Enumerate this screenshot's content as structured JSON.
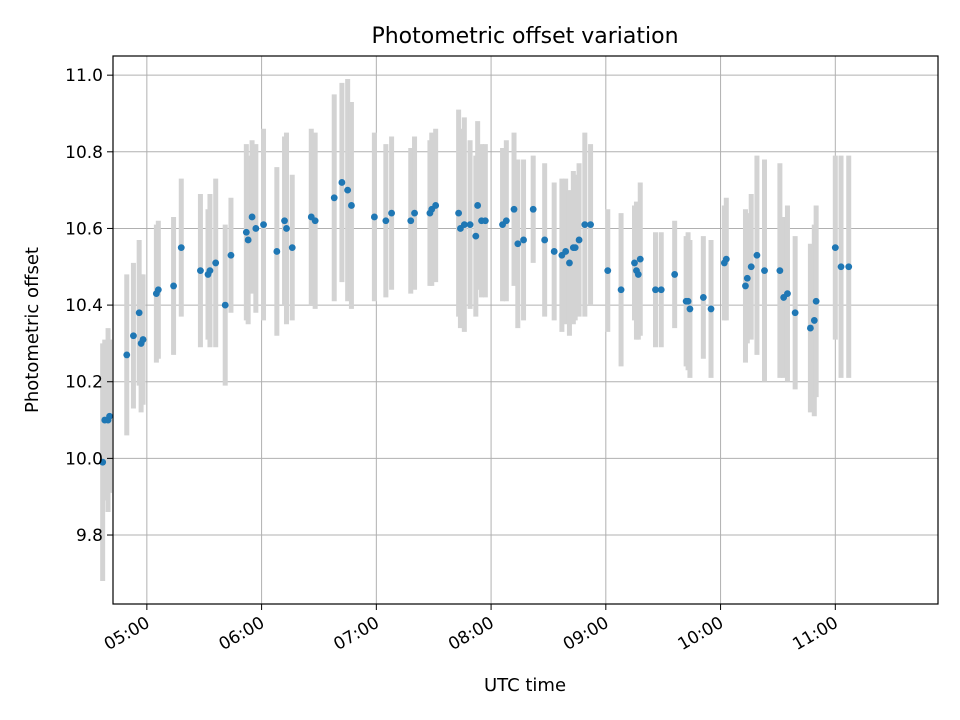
{
  "chart_data": {
    "type": "scatter",
    "title": "Photometric offset variation",
    "xlabel": "UTC time",
    "ylabel": "Photometric offset",
    "x_tick_labels": [
      "05:00",
      "06:00",
      "07:00",
      "08:00",
      "09:00",
      "10:00",
      "11:00"
    ],
    "x_tick_hours": [
      5,
      6,
      7,
      8,
      9,
      10,
      11
    ],
    "y_tick_labels": [
      "9.8",
      "10.0",
      "10.2",
      "10.4",
      "10.6",
      "10.8",
      "11.0"
    ],
    "y_tick_values": [
      9.8,
      10.0,
      10.2,
      10.4,
      10.6,
      10.8,
      11.0
    ],
    "xlim_hours": [
      4.705,
      11.895
    ],
    "ylim": [
      9.62,
      11.05
    ],
    "grid": true,
    "colors": {
      "points": "#1f77b4",
      "errorbars": "#d3d3d3",
      "grid": "#b0b0b0"
    },
    "series": [
      {
        "x_hours": [
          4.615,
          4.633,
          4.662,
          4.675,
          4.825,
          4.883,
          4.933,
          4.95,
          4.967,
          5.083,
          5.1,
          5.233,
          5.3,
          5.467,
          5.533,
          5.55,
          5.6,
          5.683,
          5.733,
          5.867,
          5.883,
          5.917,
          5.95,
          6.017,
          6.133,
          6.2,
          6.217,
          6.267,
          6.433,
          6.467,
          6.633,
          6.7,
          6.75,
          6.783,
          6.983,
          7.083,
          7.133,
          7.3,
          7.333,
          7.467,
          7.483,
          7.517,
          7.717,
          7.733,
          7.767,
          7.817,
          7.867,
          7.883,
          7.917,
          7.95,
          8.1,
          8.133,
          8.2,
          8.233,
          8.283,
          8.367,
          8.467,
          8.55,
          8.617,
          8.65,
          8.683,
          8.717,
          8.733,
          8.767,
          8.817,
          8.867,
          9.017,
          9.133,
          9.25,
          9.267,
          9.283,
          9.3,
          9.433,
          9.483,
          9.6,
          9.7,
          9.717,
          9.733,
          9.85,
          9.917,
          10.033,
          10.05,
          10.217,
          10.233,
          10.267,
          10.317,
          10.383,
          10.517,
          10.55,
          10.583,
          10.65,
          10.783,
          10.817,
          10.833,
          11.0,
          11.05,
          11.117
        ],
        "y": [
          9.99,
          10.1,
          10.1,
          10.11,
          10.27,
          10.32,
          10.38,
          10.3,
          10.31,
          10.43,
          10.44,
          10.45,
          10.55,
          10.49,
          10.48,
          10.49,
          10.51,
          10.4,
          10.53,
          10.59,
          10.57,
          10.63,
          10.6,
          10.61,
          10.54,
          10.62,
          10.6,
          10.55,
          10.63,
          10.62,
          10.68,
          10.72,
          10.7,
          10.66,
          10.63,
          10.62,
          10.64,
          10.62,
          10.64,
          10.64,
          10.65,
          10.66,
          10.64,
          10.6,
          10.61,
          10.61,
          10.58,
          10.66,
          10.62,
          10.62,
          10.61,
          10.62,
          10.65,
          10.56,
          10.57,
          10.65,
          10.57,
          10.54,
          10.53,
          10.54,
          10.51,
          10.55,
          10.55,
          10.57,
          10.61,
          10.61,
          10.49,
          10.44,
          10.51,
          10.49,
          10.48,
          10.52,
          10.44,
          10.44,
          10.48,
          10.41,
          10.41,
          10.39,
          10.42,
          10.39,
          10.51,
          10.52,
          10.45,
          10.47,
          10.5,
          10.53,
          10.49,
          10.49,
          10.42,
          10.43,
          10.38,
          10.34,
          10.36,
          10.41,
          10.55,
          10.5,
          10.5
        ],
        "error": [
          0.31,
          0.21,
          0.24,
          0.2,
          0.21,
          0.19,
          0.19,
          0.18,
          0.17,
          0.18,
          0.18,
          0.18,
          0.18,
          0.2,
          0.17,
          0.2,
          0.22,
          0.21,
          0.15,
          0.23,
          0.22,
          0.2,
          0.22,
          0.25,
          0.22,
          0.22,
          0.25,
          0.19,
          0.23,
          0.23,
          0.27,
          0.26,
          0.29,
          0.27,
          0.22,
          0.2,
          0.2,
          0.19,
          0.2,
          0.19,
          0.2,
          0.2,
          0.27,
          0.26,
          0.28,
          0.22,
          0.21,
          0.22,
          0.2,
          0.2,
          0.2,
          0.21,
          0.2,
          0.22,
          0.21,
          0.14,
          0.2,
          0.18,
          0.2,
          0.19,
          0.19,
          0.2,
          0.19,
          0.2,
          0.24,
          0.21,
          0.16,
          0.2,
          0.15,
          0.18,
          0.17,
          0.2,
          0.15,
          0.15,
          0.14,
          0.17,
          0.18,
          0.18,
          0.16,
          0.18,
          0.15,
          0.16,
          0.2,
          0.17,
          0.19,
          0.26,
          0.29,
          0.28,
          0.21,
          0.23,
          0.2,
          0.22,
          0.25,
          0.25,
          0.24,
          0.29,
          0.29
        ]
      }
    ]
  }
}
